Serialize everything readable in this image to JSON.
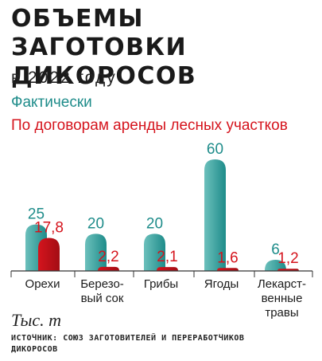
{
  "title": "Объемы заготовки\nдикоросов",
  "subtitle": "в 2022 году",
  "colors": {
    "actual": "#1e8c8a",
    "actual_light": "#6cc0bc",
    "contract": "#d5141d",
    "contract_dark": "#a30d14"
  },
  "unit_label": "Тыс. т",
  "source": "Источник: Союз заготовителей и переработчиков дикоросов",
  "chart_data": {
    "type": "bar",
    "categories": [
      "Орехи",
      "Березо-\nвый сок",
      "Грибы",
      "Ягоды",
      "Лекарст-\nвенные\nтравы"
    ],
    "series": [
      {
        "name": "Фактически",
        "values": [
          25,
          20,
          20,
          60,
          6
        ],
        "labels": [
          "25",
          "20",
          "20",
          "60",
          "6"
        ]
      },
      {
        "name": "По договорам аренды лесных участков",
        "values": [
          17.8,
          2.2,
          2.1,
          1.6,
          1.2
        ],
        "labels": [
          "17,8",
          "2,2",
          "2,1",
          "1,6",
          "1,2"
        ]
      }
    ],
    "xlabel": "",
    "ylabel": "Тыс. т",
    "ylim": [
      0,
      60
    ],
    "grid": false,
    "legend": "top-left"
  }
}
